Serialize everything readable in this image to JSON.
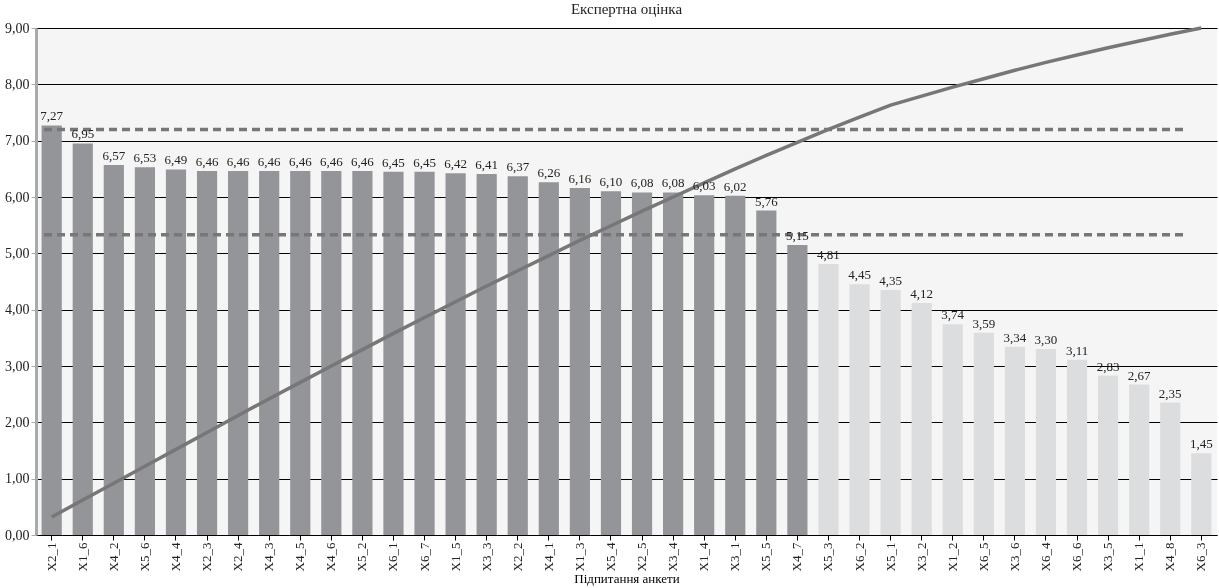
{
  "chart_data": {
    "type": "bar",
    "title": "Експертна оцінка",
    "xlabel": "Підпитання анкети",
    "categories": [
      "X2_1",
      "X1_6",
      "X4_2",
      "X5_6",
      "X4_4",
      "X2_3",
      "X2_4",
      "X4_3",
      "X4_5",
      "X4_6",
      "X5_2",
      "X6_1",
      "X6_7",
      "X1_5",
      "X3_3",
      "X2_2",
      "X4_1",
      "X1_3",
      "X5_4",
      "X2_5",
      "X3_4",
      "X1_4",
      "X3_1",
      "X5_5",
      "X4_7",
      "X5_3",
      "X6_2",
      "X5_1",
      "X3_2",
      "X1_2",
      "X6_5",
      "X3_6",
      "X6_4",
      "X6_6",
      "X3_5",
      "X1_1",
      "X4_8",
      "X6_3"
    ],
    "series": [
      {
        "values": [
          7.27,
          6.95,
          6.57,
          6.53,
          6.49,
          6.46,
          6.46,
          6.46,
          6.46,
          6.46,
          6.46,
          6.45,
          6.45,
          6.42,
          6.41,
          6.37,
          6.26,
          6.16,
          6.1,
          6.08,
          6.08,
          6.03,
          6.02,
          5.76,
          5.15,
          4.81,
          4.45,
          4.35,
          4.12,
          3.74,
          3.59,
          3.34,
          3.3,
          3.11,
          2.83,
          2.67,
          2.35,
          1.45
        ],
        "colors": [
          "#939598",
          "#939598",
          "#939598",
          "#939598",
          "#939598",
          "#939598",
          "#939598",
          "#939598",
          "#939598",
          "#939598",
          "#939598",
          "#939598",
          "#939598",
          "#939598",
          "#939598",
          "#939598",
          "#939598",
          "#939598",
          "#939598",
          "#939598",
          "#939598",
          "#939598",
          "#939598",
          "#939598",
          "#939598",
          "#dcdddf",
          "#dcdddf",
          "#dcdddf",
          "#dcdddf",
          "#dcdddf",
          "#dcdddf",
          "#dcdddf",
          "#dcdddf",
          "#dcdddf",
          "#dcdddf",
          "#dcdddf",
          "#dcdddf",
          "#dcdddf"
        ],
        "value_labels": [
          "7,27",
          "6,95",
          "6,57",
          "6,53",
          "6,49",
          "6,46",
          "6,46",
          "6,46",
          "6,46",
          "6,46",
          "6,46",
          "6,45",
          "6,45",
          "6,42",
          "6,41",
          "6,37",
          "6,26",
          "6,16",
          "6,10",
          "6,08",
          "6,08",
          "6,03",
          "6,02",
          "5,76",
          "5,15",
          "4,81",
          "4,45",
          "4,35",
          "4,12",
          "3,74",
          "3,59",
          "3,34",
          "3,30",
          "3,11",
          "2,83",
          "2,67",
          "2,35",
          "1,45"
        ]
      },
      {
        "type": "line",
        "color": "#777777",
        "values": [
          0.32,
          0.62,
          0.92,
          1.22,
          1.52,
          1.82,
          2.12,
          2.42,
          2.71,
          3.0,
          3.29,
          3.58,
          3.86,
          4.14,
          4.42,
          4.69,
          4.96,
          5.23,
          5.49,
          5.75,
          6.0,
          6.25,
          6.5,
          6.74,
          6.97,
          7.2,
          7.42,
          7.63,
          7.79,
          7.95,
          8.1,
          8.25,
          8.39,
          8.52,
          8.65,
          8.77,
          8.89,
          9.0
        ]
      }
    ],
    "ylim": [
      0,
      9
    ],
    "yticks": [
      {
        "value": 0,
        "label": "0,00"
      },
      {
        "value": 1,
        "label": "1,00"
      },
      {
        "value": 2,
        "label": "2,00"
      },
      {
        "value": 3,
        "label": "3,00"
      },
      {
        "value": 4,
        "label": "4,00"
      },
      {
        "value": 5,
        "label": "5,00"
      },
      {
        "value": 6,
        "label": "6,00"
      },
      {
        "value": 7,
        "label": "7,00"
      },
      {
        "value": 8,
        "label": "8,00"
      },
      {
        "value": 9,
        "label": "9,00"
      }
    ],
    "ref_lines": [
      {
        "axis": "y",
        "value": 7.2,
        "color": "#777777",
        "line_style": "dashed"
      },
      {
        "axis": "y",
        "value": 5.33,
        "color": "#777777",
        "line_style": "dashed"
      }
    ],
    "grid": "y"
  }
}
